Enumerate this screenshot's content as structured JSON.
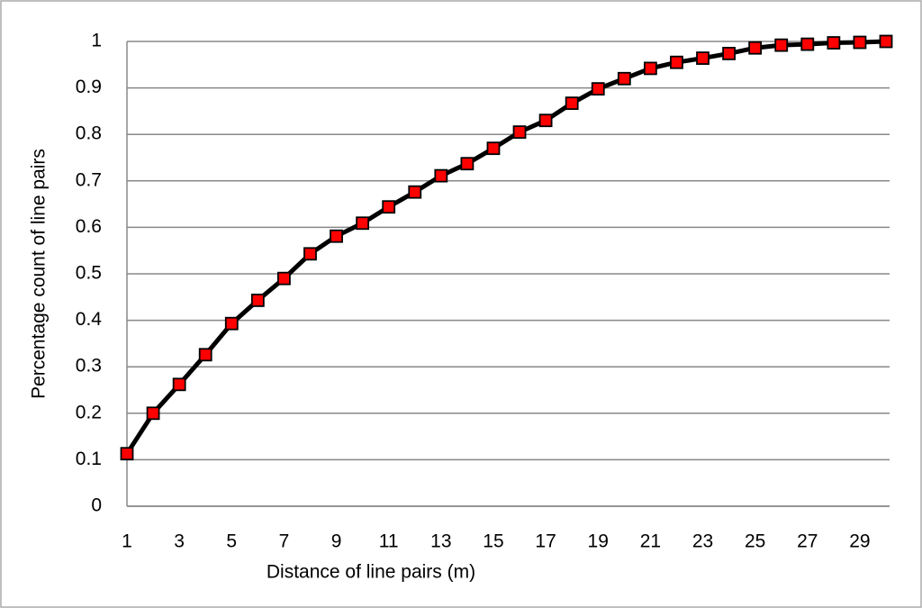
{
  "chart_data": {
    "type": "line",
    "x_label": "Distance of line pairs (m)",
    "y_label": "Percentage count of line pairs",
    "categories": [
      1,
      null,
      3,
      null,
      5,
      null,
      7,
      null,
      9,
      null,
      11,
      null,
      13,
      null,
      15,
      null,
      17,
      null,
      19,
      null,
      21,
      null,
      23,
      null,
      25,
      null,
      27,
      null,
      29,
      null
    ],
    "values": [
      0.113,
      0.2,
      0.262,
      0.326,
      0.393,
      0.443,
      0.49,
      0.543,
      0.581,
      0.609,
      0.644,
      0.676,
      0.711,
      0.737,
      0.77,
      0.805,
      0.83,
      0.867,
      0.898,
      0.92,
      0.942,
      0.955,
      0.964,
      0.974,
      0.986,
      0.992,
      0.994,
      0.997,
      0.998,
      1.0
    ],
    "color": "#000000",
    "marker_color": "#ff0000",
    "ylim": [
      0,
      1
    ],
    "yticks": [
      0,
      0.1,
      0.2,
      0.3,
      0.4,
      0.5,
      0.6,
      0.7,
      0.8,
      0.9,
      1
    ],
    "grid": true
  }
}
